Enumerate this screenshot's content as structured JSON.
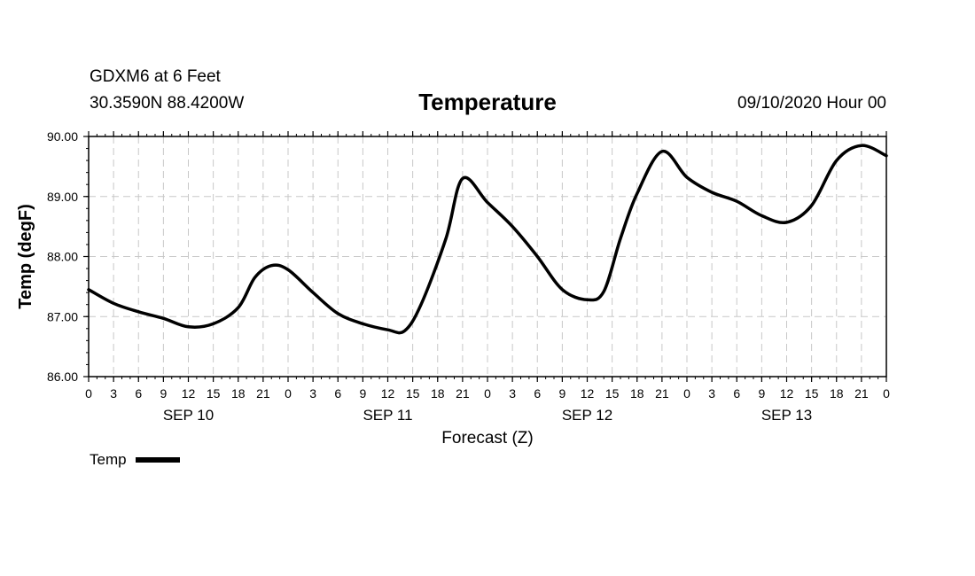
{
  "header": {
    "station": "GDXM6 at 6 Feet",
    "coords": "30.3590N 88.4200W",
    "title": "Temperature",
    "date": "09/10/2020 Hour 00"
  },
  "chart_data": {
    "type": "line",
    "title": "Temperature",
    "xlabel": "Forecast (Z)",
    "ylabel": "Temp (degF)",
    "ylim": [
      86,
      90
    ],
    "yticks": [
      "86.00",
      "87.00",
      "88.00",
      "89.00",
      "90.00"
    ],
    "xlim": [
      0,
      96
    ],
    "x_tick_hours": [
      0,
      3,
      6,
      9,
      12,
      15,
      18,
      21,
      24,
      27,
      30,
      33,
      36,
      39,
      42,
      45,
      48,
      51,
      54,
      57,
      60,
      63,
      66,
      69,
      72,
      75,
      78,
      81,
      84,
      87,
      90,
      93,
      96
    ],
    "x_tick_labels": [
      "0",
      "3",
      "6",
      "9",
      "12",
      "15",
      "18",
      "21",
      "0",
      "3",
      "6",
      "9",
      "12",
      "15",
      "18",
      "21",
      "0",
      "3",
      "6",
      "9",
      "12",
      "15",
      "18",
      "21",
      "0",
      "3",
      "6",
      "9",
      "12",
      "15",
      "18",
      "21",
      "0"
    ],
    "day_labels": [
      {
        "label": "SEP 10",
        "hour": 12
      },
      {
        "label": "SEP 11",
        "hour": 36
      },
      {
        "label": "SEP 12",
        "hour": 60
      },
      {
        "label": "SEP 13",
        "hour": 84
      }
    ],
    "grid": true,
    "legend_position": "bottom-left",
    "series": [
      {
        "name": "Temp",
        "color": "#000000",
        "x": [
          0,
          3,
          6,
          9,
          12,
          15,
          18,
          20,
          22,
          24,
          27,
          30,
          33,
          36,
          38,
          40,
          43,
          45,
          48,
          51,
          54,
          57,
          60,
          62,
          64,
          66,
          69,
          72,
          75,
          78,
          81,
          84,
          87,
          90,
          93,
          96
        ],
        "values": [
          87.45,
          87.22,
          87.08,
          86.97,
          86.83,
          86.88,
          87.15,
          87.65,
          87.85,
          87.78,
          87.4,
          87.05,
          86.88,
          86.78,
          86.76,
          87.2,
          88.3,
          89.3,
          88.9,
          88.5,
          88.0,
          87.45,
          87.28,
          87.42,
          88.3,
          89.05,
          89.75,
          89.32,
          89.07,
          88.92,
          88.68,
          88.57,
          88.85,
          89.6,
          89.85,
          89.68
        ]
      }
    ]
  }
}
